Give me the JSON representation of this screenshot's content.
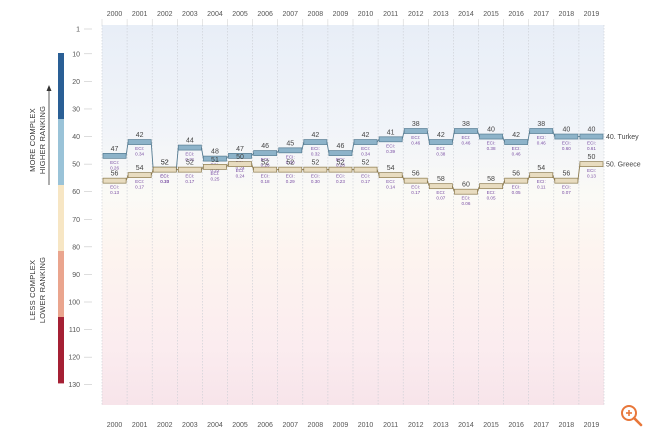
{
  "chart_data": {
    "type": "line",
    "years": [
      "2000",
      "2001",
      "2002",
      "2003",
      "2004",
      "2005",
      "2006",
      "2007",
      "2008",
      "2009",
      "2010",
      "2011",
      "2012",
      "2013",
      "2014",
      "2015",
      "2016",
      "2017",
      "2018",
      "2019"
    ],
    "y_ticks": [
      1,
      10,
      20,
      30,
      40,
      50,
      60,
      70,
      80,
      90,
      100,
      110,
      120,
      130
    ],
    "ylim": [
      1,
      133
    ],
    "y_reversed": true,
    "side_labels": {
      "top": [
        "MORE COMPLEX",
        "HIGHER RANKING"
      ],
      "bottom": [
        "LESS COMPLEX",
        "LOWER RANKING"
      ]
    },
    "complexity_band_colors": [
      "#2a5f95",
      "#9ac3d8",
      "#f7e6c4",
      "#eaa58e",
      "#a52034"
    ],
    "series": [
      {
        "name": "Turkey",
        "end_label": "40. Turkey",
        "color": "#8db3c9",
        "ranks": [
          47,
          42,
          52,
          44,
          48,
          47,
          46,
          45,
          42,
          46,
          42,
          41,
          38,
          42,
          38,
          40,
          42,
          38,
          40,
          40
        ],
        "eci": [
          "0.26",
          "0.34",
          "0.20",
          "0.31",
          "0.22",
          "0.24",
          "0.26",
          "0.30",
          "0.32",
          "0.28",
          "0.34",
          "0.39",
          "0.46",
          "0.38",
          "0.46",
          "0.38",
          "0.46",
          "0.46",
          "0.60",
          "0.61"
        ]
      },
      {
        "name": "Greece",
        "end_label": "50. Greece",
        "color": "#e8dcc0",
        "ranks": [
          56,
          54,
          52,
          52,
          51,
          50,
          52,
          52,
          52,
          52,
          52,
          54,
          56,
          58,
          60,
          58,
          56,
          54,
          56,
          50
        ],
        "eci": [
          "0.13",
          "0.17",
          "0.13",
          "0.17",
          "0.25",
          "0.24",
          "0.18",
          "0.29",
          "0.30",
          "0.23",
          "0.17",
          "0.14",
          "0.17",
          "0.07",
          "0.06",
          "0.05",
          "0.05",
          "0.11",
          "0.07",
          "0.13"
        ]
      }
    ],
    "eci_prefix": "ECI:"
  },
  "ui": {
    "zoom_icon": "zoom-in-icon",
    "accent": "#e8773a"
  }
}
